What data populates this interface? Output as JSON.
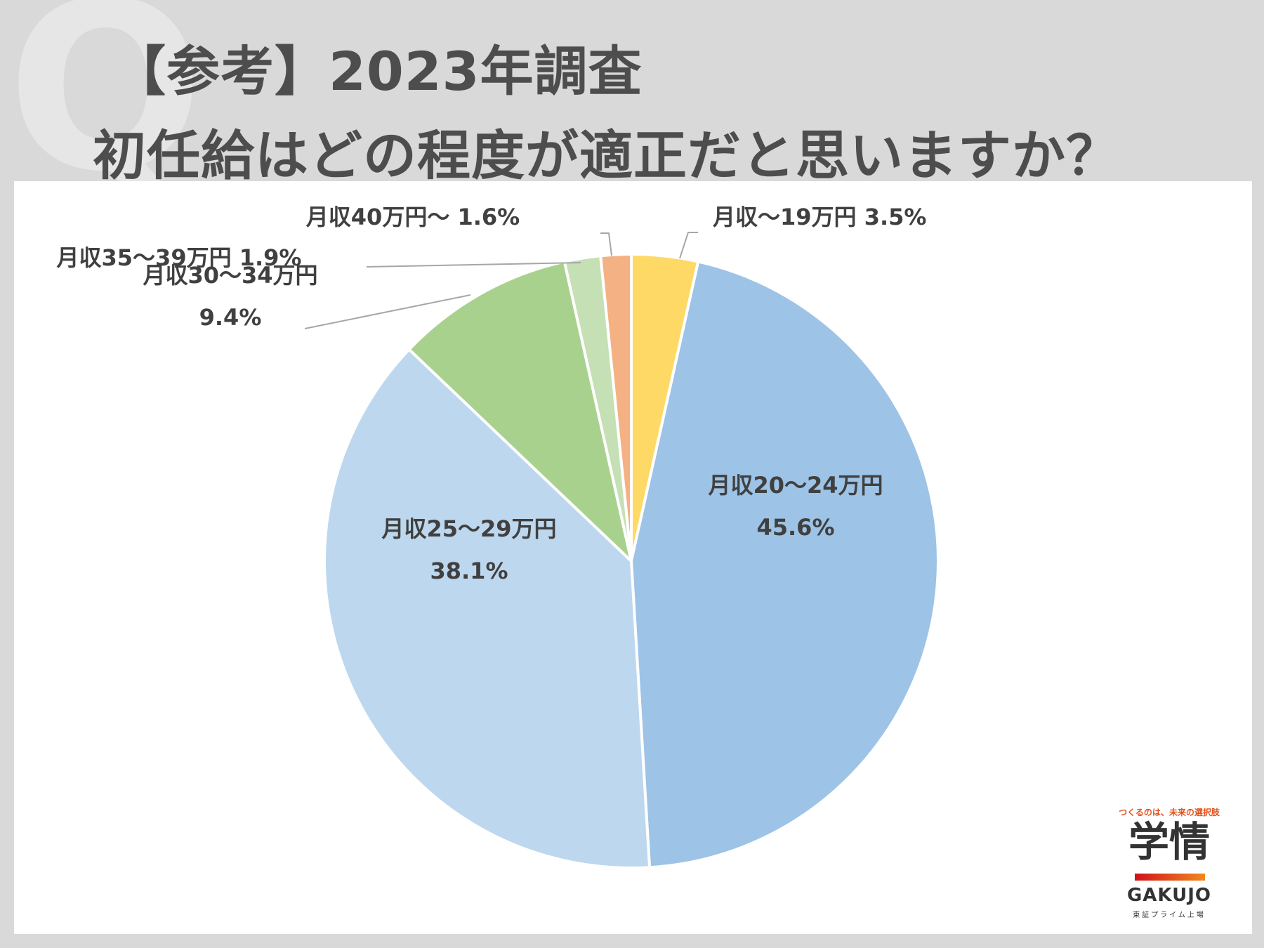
{
  "header": {
    "watermark": "Q",
    "title_line1": "【参考】2023年調査",
    "title_line2": "初任給はどの程度が適正だと思いますか？"
  },
  "chart_data": {
    "type": "pie",
    "start_angle_deg": 0,
    "direction": "clockwise",
    "slices": [
      {
        "label": "月収～19万円",
        "value": 3.5,
        "display": "3.5%",
        "color": "#ffd966"
      },
      {
        "label": "月収20～24万円",
        "value": 45.6,
        "display": "45.6%",
        "color": "#9dc3e6"
      },
      {
        "label": "月収25～29万円",
        "value": 38.1,
        "display": "38.1%",
        "color": "#bdd7ee"
      },
      {
        "label": "月収30～34万円",
        "value": 9.4,
        "display": "9.4%",
        "color": "#a9d18e"
      },
      {
        "label": "月収35～39万円",
        "value": 1.9,
        "display": "1.9%",
        "color": "#c5e0b4"
      },
      {
        "label": "月収40万円～",
        "value": 1.6,
        "display": "1.6%",
        "color": "#f4b183"
      }
    ]
  },
  "logo": {
    "tagline": "つくるのは、未来の選択肢",
    "kanji": "学情",
    "brand": "GAKUJO",
    "market": "東証プライム上場"
  }
}
